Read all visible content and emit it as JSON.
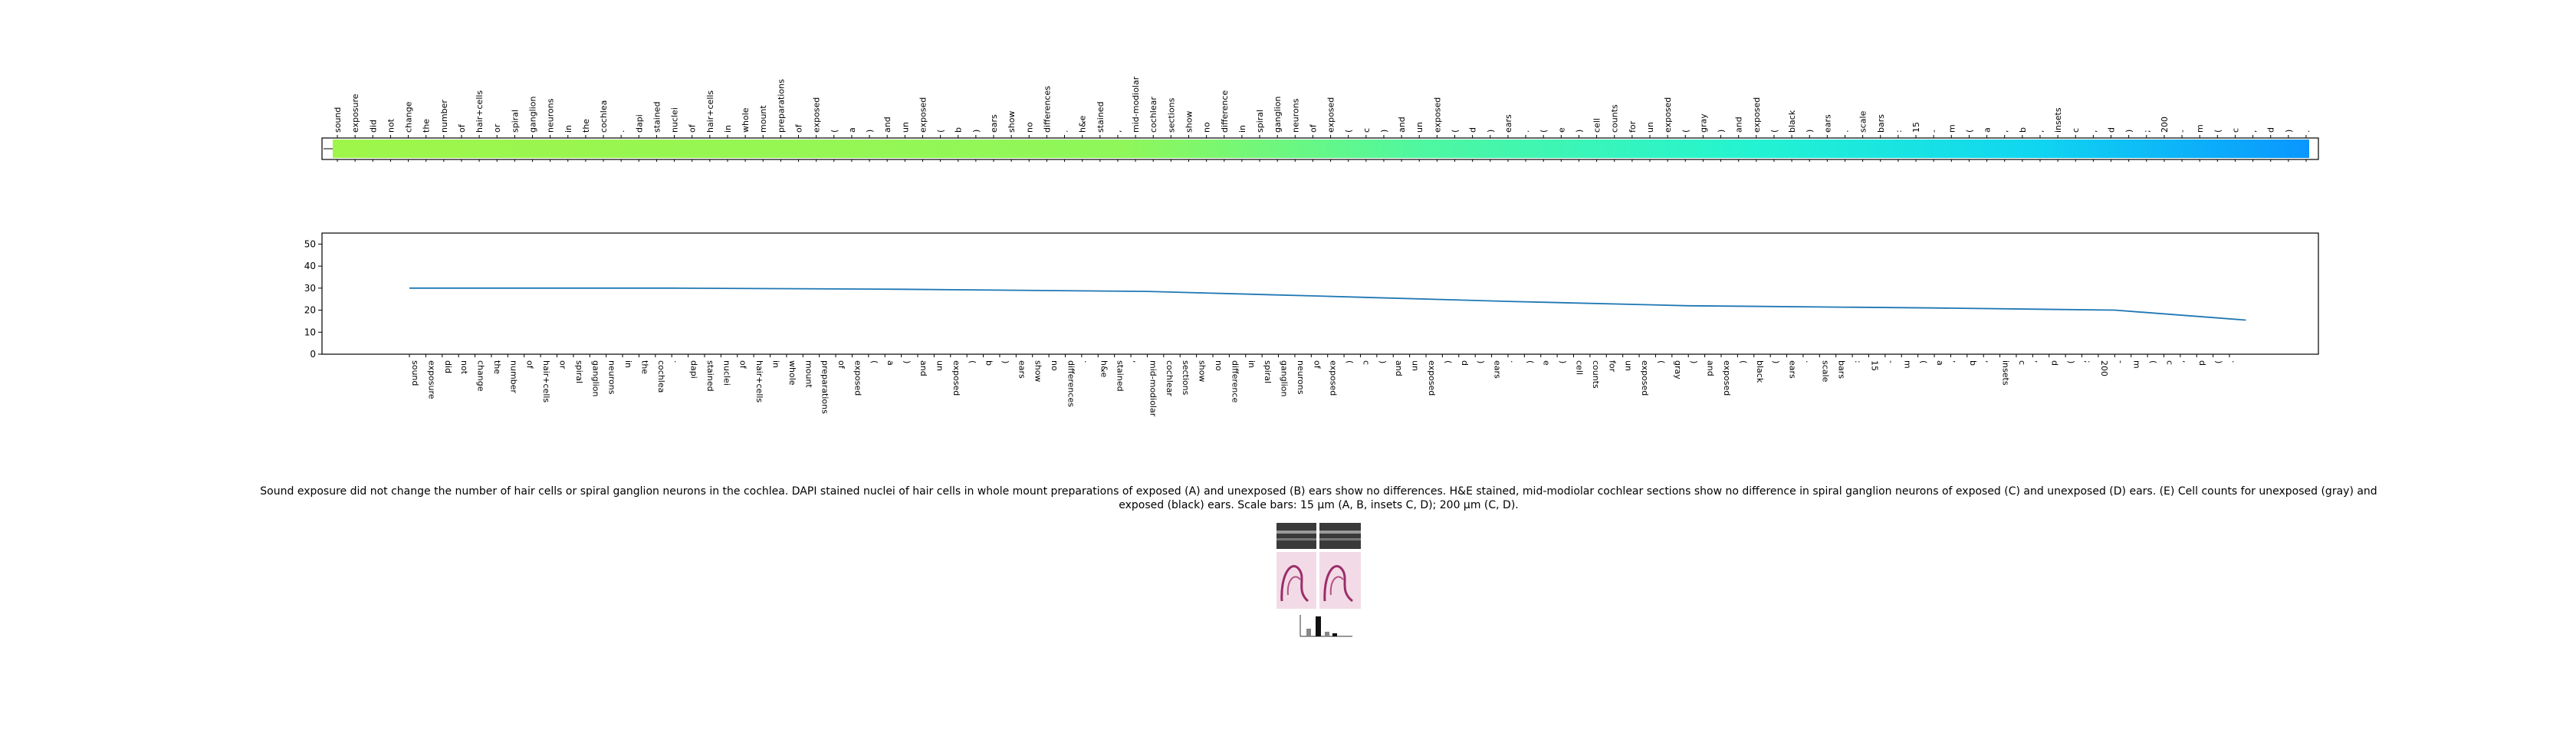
{
  "caption": "Sound exposure did not change the number of hair cells or spiral ganglion neurons in the cochlea. DAPI stained nuclei of hair cells in whole mount preparations of exposed (A) and unexposed (B) ears show no differences. H&E stained, mid-modiolar cochlear sections show no difference in spiral ganglion neurons of exposed (C) and unexposed (D) ears. (E) Cell counts for unexposed (gray) and exposed (black) ears. Scale bars: 15 μm (A, B, insets C, D); 200 μm (C, D).",
  "chart_data": [
    {
      "type": "heatmap",
      "colormap": "yellow-green to blue",
      "tick_labels": [
        "sound",
        "exposure",
        "did",
        "not",
        "change",
        "the",
        "number",
        "of",
        "hair+cells",
        "or",
        "spiral",
        "ganglion",
        "neurons",
        "in",
        "the",
        "cochlea",
        ".",
        "dapi",
        "stained",
        "nuclei",
        "of",
        "hair+cells",
        "in",
        "whole",
        "mount",
        "preparations",
        "of",
        "exposed",
        "(",
        "a",
        ")",
        "and",
        "un",
        "exposed",
        "(",
        "b",
        ")",
        "ears",
        "show",
        "no",
        "differences",
        ".",
        "h&e",
        "stained",
        ",",
        "mid-modiolar",
        "cochlear",
        "sections",
        "show",
        "no",
        "difference",
        "in",
        "spiral",
        "ganglion",
        "neurons",
        "of",
        "exposed",
        "(",
        "c",
        ")",
        "and",
        "un",
        "exposed",
        "(",
        "d",
        ")",
        "ears",
        ".",
        "(",
        "e",
        ")",
        "cell",
        "counts",
        "for",
        "un",
        "exposed",
        "(",
        "gray",
        ")",
        "and",
        "exposed",
        "(",
        "black",
        ")",
        "ears",
        ".",
        "scale",
        "bars",
        ":",
        "15",
        "-",
        "m",
        "(",
        "a",
        ",",
        "b",
        ",",
        "insets",
        "c",
        ",",
        "d",
        ")",
        ";",
        "200",
        "-",
        "m",
        "(",
        "c",
        ",",
        "d",
        ")",
        "."
      ]
    },
    {
      "type": "line",
      "ylim": [
        0,
        55
      ],
      "yticks": [
        0,
        10,
        20,
        30,
        40,
        50
      ],
      "grid": false,
      "x_labels": [
        "sound",
        "exposure",
        "did",
        "not",
        "change",
        "the",
        "number",
        "of",
        "hair+cells",
        "or",
        "spiral",
        "ganglion",
        "neurons",
        "in",
        "the",
        "cochlea",
        ".",
        "dapi",
        "stained",
        "nuclei",
        "of",
        "hair+cells",
        "in",
        "whole",
        "mount",
        "preparations",
        "of",
        "exposed",
        "(",
        "a",
        ")",
        "and",
        "un",
        "exposed",
        "(",
        "b",
        ")",
        "ears",
        "show",
        "no",
        "differences",
        ".",
        "h&e",
        "stained",
        ",",
        "mid-modiolar",
        "cochlear",
        "sections",
        "show",
        "no",
        "difference",
        "in",
        "spiral",
        "ganglion",
        "neurons",
        "of",
        "exposed",
        "(",
        "c",
        ")",
        "and",
        "un",
        "exposed",
        "(",
        "d",
        ")",
        "ears",
        ".",
        "(",
        "e",
        ")",
        "cell",
        "counts",
        "for",
        "un",
        "exposed",
        "(",
        "gray",
        ")",
        "and",
        "exposed",
        "(",
        "black",
        ")",
        "ears",
        ".",
        "scale",
        "bars",
        ":",
        "15",
        "-",
        "m",
        "(",
        "a",
        ",",
        "b",
        ",",
        "insets",
        "c",
        ",",
        "d",
        ")",
        ";",
        "200",
        "-",
        "m",
        "(",
        "c",
        ",",
        "d",
        ")",
        "."
      ],
      "series": [
        {
          "color": "#1f77b4",
          "points": [
            [
              0,
              30
            ],
            [
              16,
              30
            ],
            [
              30,
              29.5
            ],
            [
              45,
              28.5
            ],
            [
              55,
              26.5
            ],
            [
              67,
              24
            ],
            [
              78,
              22
            ],
            [
              93,
              21
            ],
            [
              104,
              20
            ],
            [
              112,
              15.5
            ]
          ]
        }
      ]
    }
  ]
}
